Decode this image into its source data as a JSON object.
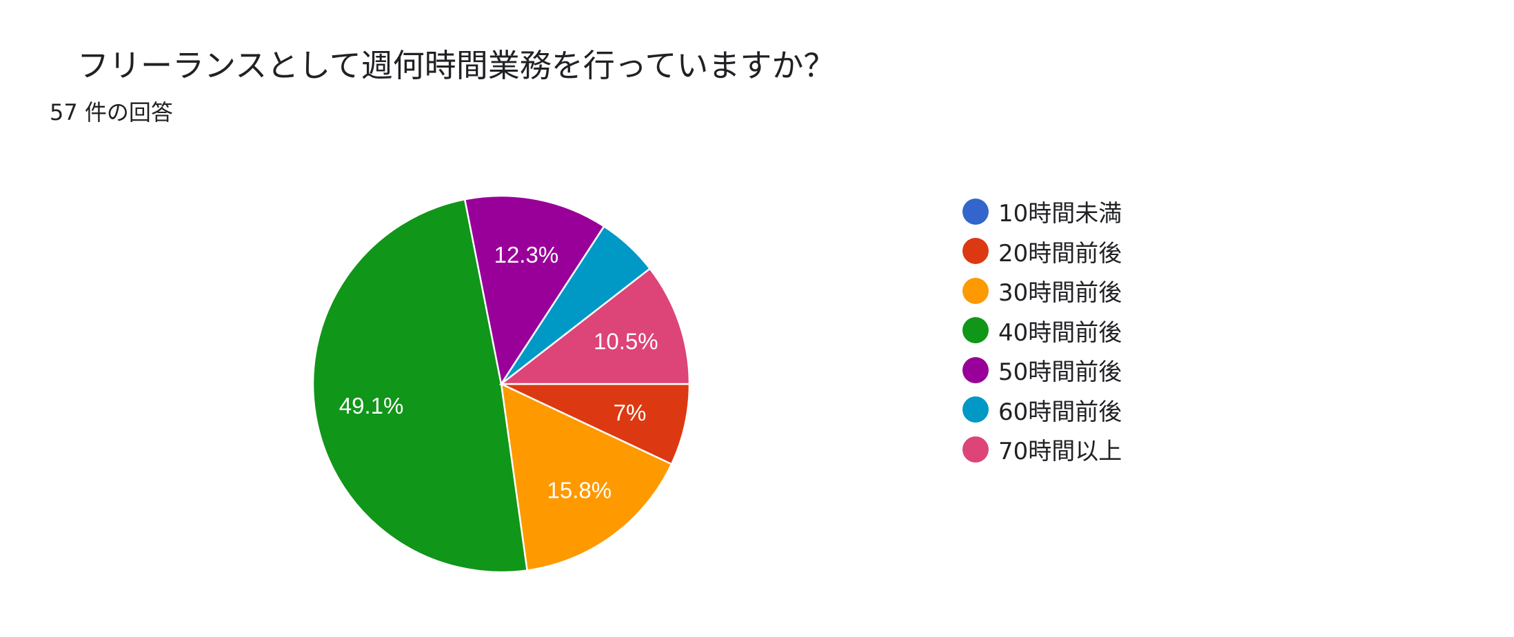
{
  "chart_data": {
    "type": "pie",
    "title": "フリーランスとして週何時間業務を行っていますか？",
    "subtitle": "57 件の回答",
    "legend_position": "right",
    "series": [
      {
        "name": "",
        "categories": [
          "10時間未満",
          "20時間前後",
          "30時間前後",
          "40時間前後",
          "50時間前後",
          "60時間前後",
          "70時間以上"
        ],
        "values": [
          0,
          7.0,
          15.8,
          49.1,
          12.3,
          5.3,
          10.5
        ],
        "labels": [
          "",
          "7%",
          "15.8%",
          "49.1%",
          "12.3%",
          "",
          "10.5%"
        ],
        "colors": [
          "#3366cc",
          "#dc3912",
          "#ff9900",
          "#109618",
          "#990099",
          "#0099c6",
          "#dd4477"
        ]
      }
    ]
  }
}
